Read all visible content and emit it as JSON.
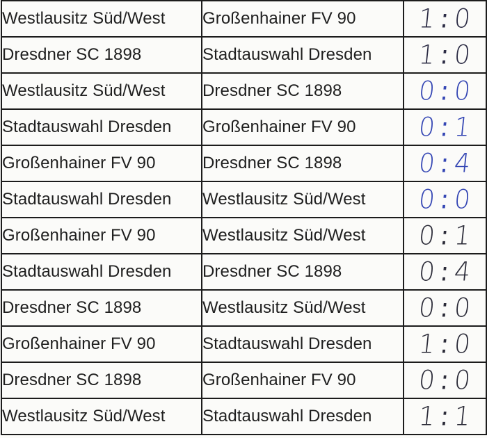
{
  "matches": [
    {
      "home": "Westlausitz Süd/West",
      "away": "Großenhainer FV 90",
      "home_goals": "1",
      "away_goals": "0",
      "ink": "#2b2b44"
    },
    {
      "home": "Dresdner SC 1898",
      "away": "Stadtauswahl Dresden",
      "home_goals": "1",
      "away_goals": "0",
      "ink": "#2b2b44"
    },
    {
      "home": "Westlausitz Süd/West",
      "away": "Dresdner SC 1898",
      "home_goals": "0",
      "away_goals": "0",
      "ink": "#3446b4"
    },
    {
      "home": "Stadtauswahl Dresden",
      "away": "Großenhainer FV 90",
      "home_goals": "0",
      "away_goals": "1",
      "ink": "#3446b4"
    },
    {
      "home": "Großenhainer FV 90",
      "away": "Dresdner SC 1898",
      "home_goals": "0",
      "away_goals": "4",
      "ink": "#3446b4"
    },
    {
      "home": "Stadtauswahl Dresden",
      "away": "Westlausitz Süd/West",
      "home_goals": "0",
      "away_goals": "0",
      "ink": "#3446b4"
    },
    {
      "home": "Großenhainer FV 90",
      "away": "Westlausitz Süd/West",
      "home_goals": "0",
      "away_goals": "1",
      "ink": "#2b2b38"
    },
    {
      "home": "Stadtauswahl Dresden",
      "away": "Dresdner SC 1898",
      "home_goals": "0",
      "away_goals": "4",
      "ink": "#2b2b38"
    },
    {
      "home": "Dresdner SC 1898",
      "away": "Westlausitz Süd/West",
      "home_goals": "0",
      "away_goals": "0",
      "ink": "#2b2b38"
    },
    {
      "home": "Großenhainer FV 90",
      "away": "Stadtauswahl Dresden",
      "home_goals": "1",
      "away_goals": "0",
      "ink": "#2b2b38"
    },
    {
      "home": "Dresdner SC 1898",
      "away": "Großenhainer FV 90",
      "home_goals": "0",
      "away_goals": "0",
      "ink": "#2b2b38"
    },
    {
      "home": "Westlausitz Süd/West",
      "away": "Stadtauswahl Dresden",
      "home_goals": "1",
      "away_goals": "1",
      "ink": "#2b2b38"
    }
  ]
}
